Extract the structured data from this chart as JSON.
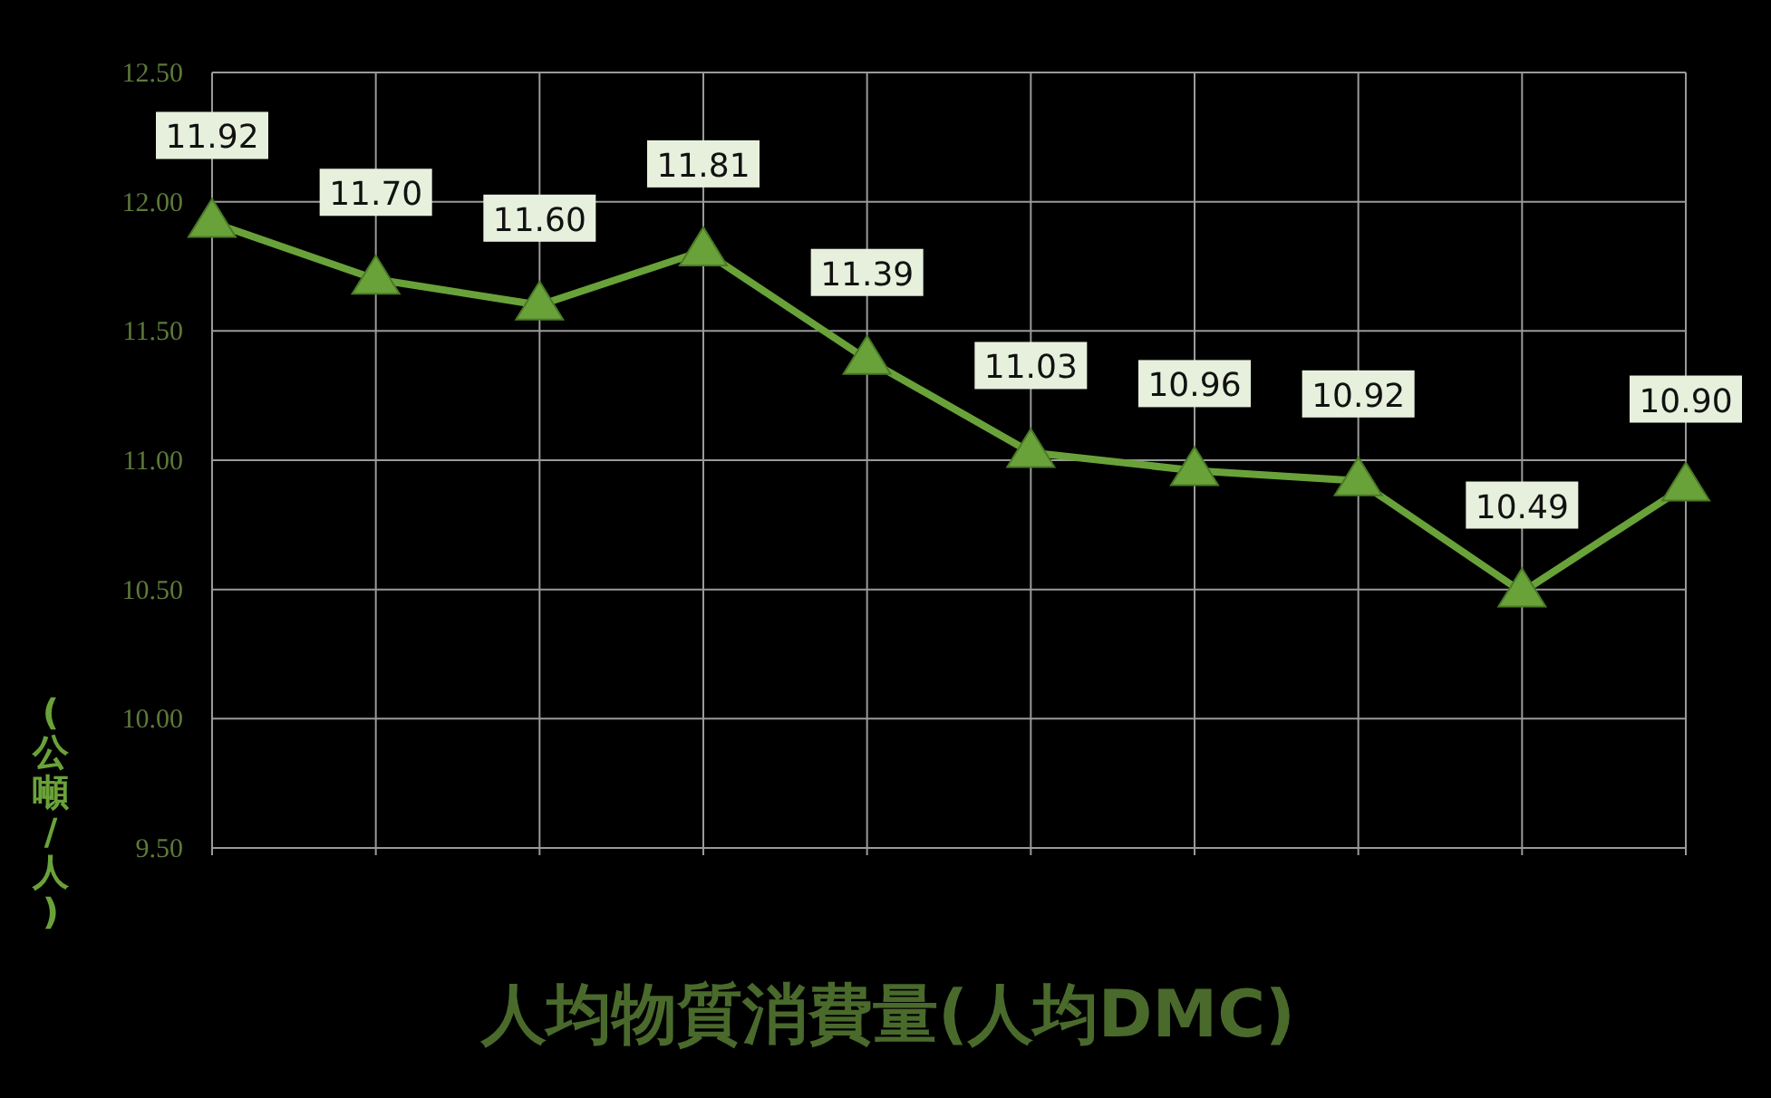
{
  "chart_data": {
    "type": "line",
    "title": "人均物質消費量(人均DMC)",
    "ylabel": "(公噸/人)",
    "categories": [
      null,
      null,
      null,
      null,
      null,
      null,
      null,
      null,
      null,
      null
    ],
    "series": [
      {
        "color": "#6aa23a",
        "values": [
          11.92,
          11.7,
          11.6,
          11.81,
          11.39,
          11.03,
          10.96,
          10.92,
          10.49,
          10.9
        ],
        "value_labels": [
          "11.92",
          "11.70",
          "11.60",
          "11.81",
          "11.39",
          "11.03",
          "10.96",
          "10.92",
          "10.49",
          "10.90"
        ]
      }
    ],
    "ylim": [
      9.5,
      12.5
    ],
    "yticks": [
      {
        "value": 9.5,
        "label": "9.50"
      },
      {
        "value": 10,
        "label": "10.00"
      },
      {
        "value": 10.5,
        "label": "10.50"
      },
      {
        "value": 11,
        "label": "11.00"
      },
      {
        "value": 11.5,
        "label": "11.50"
      },
      {
        "value": 12,
        "label": "12.00"
      },
      {
        "value": 12.5,
        "label": "12.50"
      }
    ],
    "grid": true,
    "marker": "triangle",
    "line_style": "solid"
  }
}
